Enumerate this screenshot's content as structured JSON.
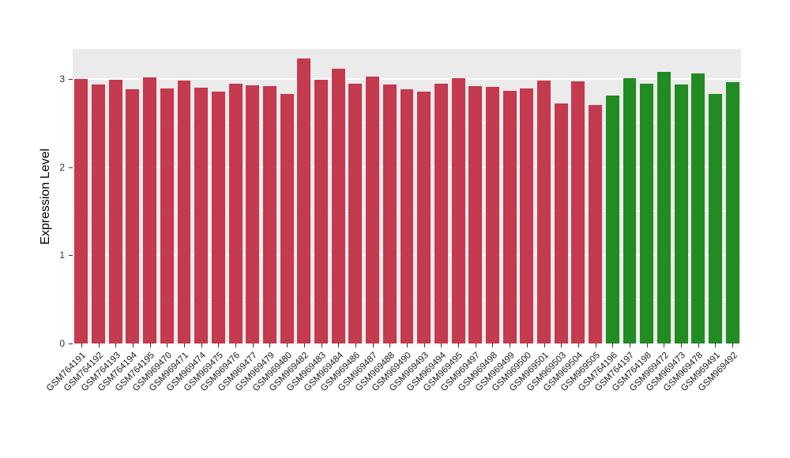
{
  "chart_data": {
    "type": "bar",
    "title": "",
    "xlabel": "",
    "ylabel": "Expression Level",
    "ylim": [
      0,
      3.34
    ],
    "yticks_major": [
      0,
      1,
      2,
      3
    ],
    "yticks_minor": [
      0.5,
      1.5,
      2.5
    ],
    "grid": true,
    "legend": "none",
    "panel_bg": "#EBEBEB",
    "grid_color": "#FFFFFF",
    "group_colors": {
      "red": "#C43A4E",
      "green": "#228B22"
    },
    "categories": [
      "GSM764191",
      "GSM764192",
      "GSM764193",
      "GSM764194",
      "GSM764195",
      "GSM969470",
      "GSM969471",
      "GSM969474",
      "GSM969475",
      "GSM969476",
      "GSM969477",
      "GSM969479",
      "GSM969480",
      "GSM969482",
      "GSM969483",
      "GSM969484",
      "GSM969486",
      "GSM969487",
      "GSM969488",
      "GSM969490",
      "GSM969493",
      "GSM969494",
      "GSM969495",
      "GSM969497",
      "GSM969498",
      "GSM969499",
      "GSM969500",
      "GSM969501",
      "GSM969503",
      "GSM969504",
      "GSM969505",
      "GSM764196",
      "GSM764197",
      "GSM764198",
      "GSM969472",
      "GSM969473",
      "GSM969478",
      "GSM969491",
      "GSM969492"
    ],
    "values": [
      3.0,
      2.94,
      2.99,
      2.88,
      3.02,
      2.89,
      2.98,
      2.9,
      2.86,
      2.95,
      2.93,
      2.92,
      2.83,
      3.23,
      2.99,
      3.12,
      2.95,
      3.03,
      2.94,
      2.88,
      2.86,
      2.95,
      3.01,
      2.92,
      2.91,
      2.87,
      2.89,
      2.98,
      2.72,
      2.97,
      2.7,
      2.81,
      3.01,
      2.95,
      3.08,
      2.94,
      3.06,
      2.83,
      2.96
    ],
    "groups": [
      "red",
      "red",
      "red",
      "red",
      "red",
      "red",
      "red",
      "red",
      "red",
      "red",
      "red",
      "red",
      "red",
      "red",
      "red",
      "red",
      "red",
      "red",
      "red",
      "red",
      "red",
      "red",
      "red",
      "red",
      "red",
      "red",
      "red",
      "red",
      "red",
      "red",
      "red",
      "green",
      "green",
      "green",
      "green",
      "green",
      "green",
      "green",
      "green"
    ]
  }
}
